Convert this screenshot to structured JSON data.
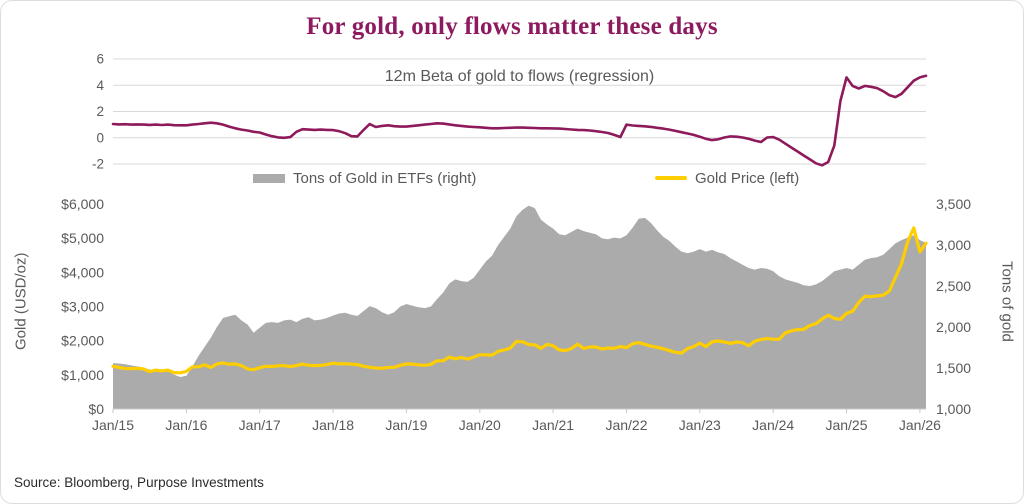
{
  "card": {
    "title": "For gold, only flows matter these days",
    "source": "Source: Bloomberg, Purpose Investments"
  },
  "colors": {
    "maroon": "#8E1A5B",
    "gold": "#FFCE00",
    "gray_area": "#ABABAB",
    "axis_text": "#595959",
    "gridline": "#D9D9D9",
    "axis_line": "#C8C8C8"
  },
  "chart_data": [
    {
      "type": "line",
      "title": "12m Beta of gold to flows (regression)",
      "line_color": "#8E1A5B",
      "x_start": "Jan/15",
      "x_interval": "monthly",
      "ylim": [
        -2,
        6
      ],
      "ytick_values": [
        6,
        4,
        2,
        0,
        -2
      ],
      "ytick_labels": [
        "6",
        "4",
        "2",
        "0",
        "-2"
      ],
      "grid": "horizontal",
      "series": [
        {
          "name": "12m beta of gold to flows",
          "values": [
            1.05,
            1.02,
            1.03,
            1.0,
            1.02,
            1.0,
            0.98,
            1.0,
            0.97,
            1.0,
            0.96,
            0.95,
            0.95,
            1.0,
            1.05,
            1.1,
            1.15,
            1.1,
            1.0,
            0.85,
            0.72,
            0.62,
            0.55,
            0.45,
            0.4,
            0.25,
            0.12,
            0.03,
            0.0,
            0.05,
            0.45,
            0.65,
            0.62,
            0.6,
            0.62,
            0.6,
            0.58,
            0.5,
            0.35,
            0.12,
            0.1,
            0.6,
            1.05,
            0.82,
            0.9,
            0.95,
            0.88,
            0.85,
            0.85,
            0.9,
            0.95,
            1.0,
            1.05,
            1.1,
            1.08,
            1.02,
            0.95,
            0.9,
            0.85,
            0.82,
            0.8,
            0.76,
            0.72,
            0.72,
            0.74,
            0.76,
            0.78,
            0.77,
            0.76,
            0.74,
            0.72,
            0.72,
            0.71,
            0.7,
            0.67,
            0.63,
            0.6,
            0.58,
            0.55,
            0.5,
            0.44,
            0.36,
            0.22,
            0.06,
            1.0,
            0.93,
            0.9,
            0.87,
            0.83,
            0.76,
            0.7,
            0.62,
            0.52,
            0.42,
            0.32,
            0.22,
            0.08,
            -0.08,
            -0.18,
            -0.12,
            0.02,
            0.1,
            0.08,
            0.02,
            -0.08,
            -0.22,
            -0.32,
            0.02,
            0.05,
            -0.15,
            -0.45,
            -0.75,
            -1.05,
            -1.35,
            -1.65,
            -1.95,
            -2.1,
            -1.85,
            -0.6,
            2.8,
            4.6,
            3.95,
            3.75,
            3.95,
            3.88,
            3.78,
            3.55,
            3.25,
            3.1,
            3.35,
            3.85,
            4.35,
            4.6,
            4.72
          ]
        }
      ]
    },
    {
      "type": "area-line-combo",
      "x_start": "Jan/15",
      "x_interval": "monthly",
      "x_tick_labels": [
        "Jan/15",
        "Jan/16",
        "Jan/17",
        "Jan/18",
        "Jan/19",
        "Jan/20",
        "Jan/21",
        "Jan/22",
        "Jan/23",
        "Jan/24",
        "Jan/25",
        "Jan/26"
      ],
      "left_axis": {
        "title": "Gold (USD/oz)",
        "lim": [
          0,
          6000
        ],
        "tick_labels": [
          "$6,000",
          "$5,000",
          "$4,000",
          "$3,000",
          "$2,000",
          "$1,000",
          "$0"
        ]
      },
      "right_axis": {
        "title": "Tons of gold",
        "lim": [
          1000,
          3500
        ],
        "tick_labels": [
          "3,500",
          "3,000",
          "2,500",
          "2,000",
          "1,500",
          "1,000"
        ]
      },
      "legend": [
        {
          "label": "Tons of Gold in ETFs (right)",
          "swatch": "gray-area"
        },
        {
          "label": "Gold Price (left)",
          "swatch": "gold-line"
        }
      ],
      "series": [
        {
          "name": "Tons of Gold in ETFs",
          "type": "area",
          "axis": "right",
          "color": "#ABABAB",
          "values": [
            1560,
            1555,
            1545,
            1530,
            1520,
            1505,
            1480,
            1470,
            1475,
            1460,
            1420,
            1390,
            1405,
            1520,
            1650,
            1760,
            1870,
            2000,
            2110,
            2130,
            2150,
            2080,
            2030,
            1930,
            1990,
            2050,
            2060,
            2050,
            2080,
            2090,
            2060,
            2100,
            2120,
            2080,
            2090,
            2110,
            2140,
            2165,
            2175,
            2150,
            2135,
            2195,
            2255,
            2230,
            2180,
            2150,
            2180,
            2250,
            2280,
            2260,
            2240,
            2230,
            2250,
            2340,
            2420,
            2530,
            2580,
            2560,
            2550,
            2600,
            2700,
            2800,
            2870,
            3000,
            3100,
            3200,
            3350,
            3430,
            3480,
            3450,
            3310,
            3250,
            3200,
            3130,
            3120,
            3160,
            3200,
            3170,
            3150,
            3130,
            3080,
            3070,
            3090,
            3080,
            3120,
            3210,
            3320,
            3330,
            3270,
            3180,
            3100,
            3050,
            2980,
            2920,
            2900,
            2920,
            2950,
            2920,
            2940,
            2910,
            2890,
            2840,
            2800,
            2760,
            2720,
            2700,
            2720,
            2710,
            2680,
            2620,
            2580,
            2560,
            2540,
            2510,
            2500,
            2520,
            2560,
            2620,
            2680,
            2700,
            2720,
            2700,
            2760,
            2820,
            2840,
            2850,
            2880,
            2950,
            3020,
            3060,
            3090,
            3120,
            3060,
            3025
          ]
        },
        {
          "name": "Gold Price",
          "type": "line",
          "axis": "left",
          "color": "#FFCE00",
          "values": [
            1250,
            1215,
            1185,
            1180,
            1190,
            1170,
            1095,
            1135,
            1115,
            1140,
            1065,
            1060,
            1100,
            1235,
            1235,
            1290,
            1215,
            1320,
            1350,
            1310,
            1320,
            1270,
            1175,
            1150,
            1210,
            1250,
            1245,
            1265,
            1270,
            1240,
            1270,
            1315,
            1280,
            1270,
            1275,
            1300,
            1340,
            1320,
            1325,
            1315,
            1300,
            1250,
            1220,
            1200,
            1190,
            1215,
            1220,
            1280,
            1320,
            1315,
            1290,
            1280,
            1305,
            1410,
            1415,
            1520,
            1470,
            1510,
            1460,
            1520,
            1590,
            1585,
            1575,
            1690,
            1730,
            1780,
            1975,
            1970,
            1885,
            1880,
            1775,
            1895,
            1850,
            1730,
            1710,
            1770,
            1900,
            1770,
            1815,
            1815,
            1755,
            1785,
            1775,
            1830,
            1795,
            1910,
            1940,
            1895,
            1840,
            1805,
            1765,
            1710,
            1660,
            1635,
            1770,
            1825,
            1925,
            1825,
            1970,
            1990,
            1960,
            1920,
            1965,
            1940,
            1850,
            1985,
            2035,
            2065,
            2040,
            2045,
            2230,
            2290,
            2325,
            2330,
            2445,
            2500,
            2635,
            2745,
            2650,
            2625,
            2800,
            2860,
            3120,
            3300,
            3290,
            3310,
            3330,
            3450,
            3850,
            4250,
            4900,
            5300,
            4600,
            4850
          ]
        }
      ]
    }
  ]
}
